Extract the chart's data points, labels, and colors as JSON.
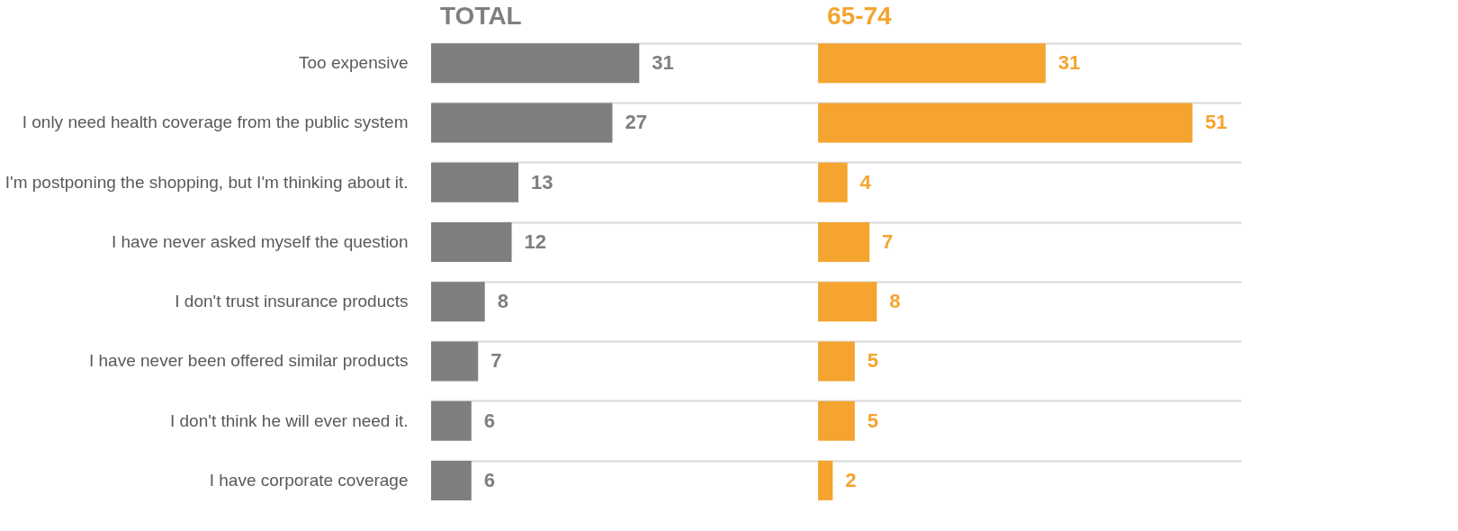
{
  "chart_data": [
    {
      "type": "bar",
      "orientation": "horizontal",
      "title": "TOTAL",
      "categories": [
        "Too expensive",
        "I only need health coverage from the public system",
        "I'm postponing the shopping, but I'm thinking about it.",
        "I have never asked myself the question",
        "I don't trust insurance products",
        "I have never been offered similar products",
        "I don't think he will ever need it.",
        "I have corporate coverage"
      ],
      "series": [
        {
          "color": "#7f7f7f",
          "values": [
            31,
            27,
            13,
            12,
            8,
            7,
            6,
            6
          ]
        }
      ],
      "data_labels": true,
      "grid": "y",
      "tick_labels": "y"
    },
    {
      "type": "bar",
      "orientation": "horizontal",
      "title": "65-74",
      "categories": [
        null,
        null,
        null,
        null,
        null,
        null,
        null,
        null
      ],
      "series": [
        {
          "color": "#f4a42f",
          "values": [
            31,
            51,
            4,
            7,
            8,
            5,
            5,
            2
          ]
        }
      ],
      "data_labels": true,
      "grid": "y",
      "tick_labels": false
    }
  ]
}
